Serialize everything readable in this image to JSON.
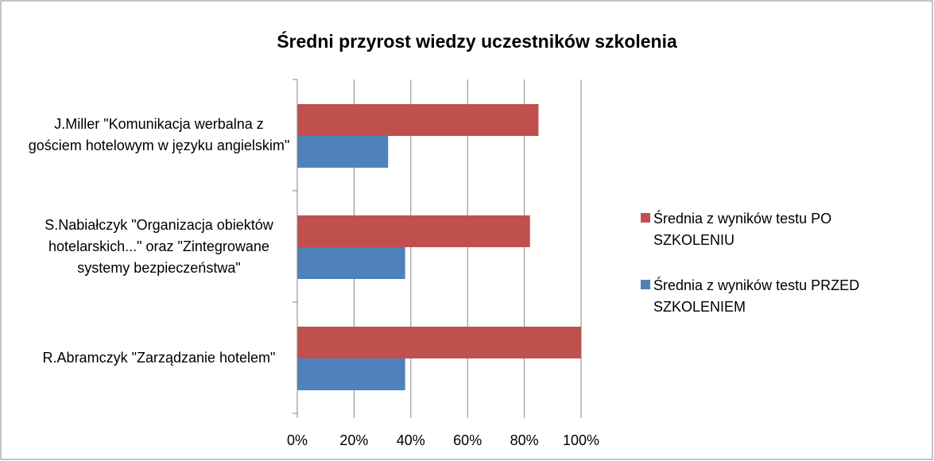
{
  "chart_data": {
    "type": "bar",
    "orientation": "horizontal",
    "title": "Średni przyrost wiedzy uczestników szkolenia",
    "categories": [
      "J.Miller \"Komunikacja werbalna z gościem hotelowym w języku angielskim\"",
      "S.Nabiałczyk \"Organizacja obiektów hotelarskich...\" oraz \"Zintegrowane systemy bezpieczeństwa\"",
      "R.Abramczyk \"Zarządzanie hotelem\""
    ],
    "series": [
      {
        "name": "Średnia z wyników testu PO SZKOLENIU",
        "color": "#c0504d",
        "values": [
          85,
          82,
          100
        ]
      },
      {
        "name": "Średnia z wyników testu PRZED SZKOLENIEM",
        "color": "#4f81bd",
        "values": [
          32,
          38,
          38
        ]
      }
    ],
    "xlim": [
      0,
      100
    ],
    "xticks": [
      {
        "value": 0,
        "label": "0%"
      },
      {
        "value": 20,
        "label": "20%"
      },
      {
        "value": 40,
        "label": "40%"
      },
      {
        "value": 60,
        "label": "60%"
      },
      {
        "value": 80,
        "label": "80%"
      },
      {
        "value": 100,
        "label": "100%"
      }
    ],
    "grid": true,
    "legend": "right"
  }
}
